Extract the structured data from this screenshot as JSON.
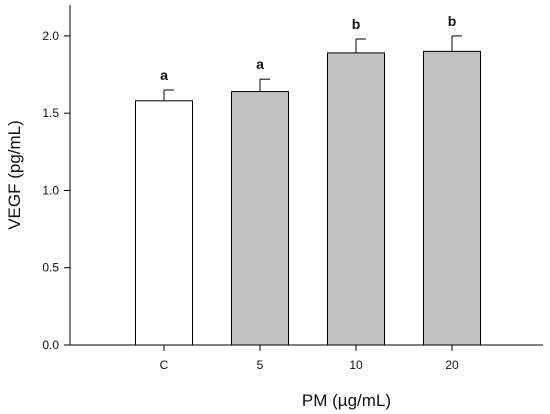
{
  "chart_data": {
    "type": "bar",
    "categories": [
      "C",
      "5",
      "10",
      "20"
    ],
    "values": [
      1.58,
      1.64,
      1.89,
      1.9
    ],
    "errors": [
      0.07,
      0.08,
      0.09,
      0.1
    ],
    "significance": [
      "a",
      "a",
      "b",
      "b"
    ],
    "bar_colors": [
      "#ffffff",
      "#c0c0c0",
      "#c0c0c0",
      "#c0c0c0"
    ],
    "xlabel": "PM (µg/mL)",
    "ylabel": "VEGF (pg/mL)",
    "ylim": [
      0,
      2.2
    ],
    "yticks": [
      "0.0",
      "0.5",
      "1.0",
      "1.5",
      "2.0"
    ],
    "grid": false,
    "legend": "none"
  }
}
